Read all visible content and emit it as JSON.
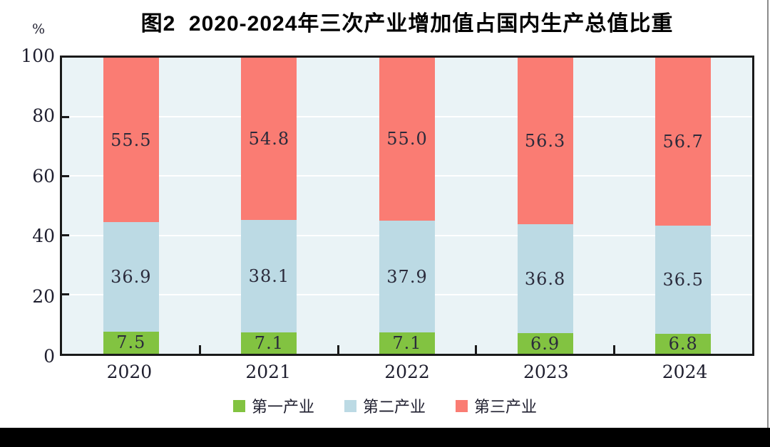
{
  "page": {
    "percent_label": "%"
  },
  "chart_data": {
    "type": "bar",
    "stacked": true,
    "title": "图2  2020-2024年三次产业增加值占国内生产总值比重",
    "ylabel": "%",
    "ylim": [
      0,
      100
    ],
    "yticks": [
      0,
      20,
      40,
      60,
      80,
      100
    ],
    "grid": true,
    "legend_position": "bottom",
    "categories": [
      "2020",
      "2021",
      "2022",
      "2023",
      "2024"
    ],
    "series": [
      {
        "name": "第一产业",
        "color": "#82c341",
        "values": [
          7.5,
          7.1,
          7.1,
          6.9,
          6.8
        ]
      },
      {
        "name": "第二产业",
        "color": "#bcdae4",
        "values": [
          36.9,
          38.1,
          37.9,
          36.8,
          36.5
        ]
      },
      {
        "name": "第三产业",
        "color": "#fa7c73",
        "values": [
          55.5,
          54.8,
          55.0,
          56.3,
          56.7
        ]
      }
    ],
    "colors": {
      "plot_background": "#eaf3f6",
      "gridline": "#ffffff",
      "axis": "#1a1a1a",
      "value_text": "#2b2b3b"
    }
  }
}
